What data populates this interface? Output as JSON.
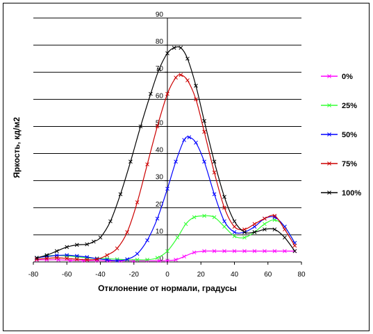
{
  "chart_data": {
    "type": "line",
    "title": "",
    "xlabel": "Отклонение от нормали, градусы",
    "ylabel": "Яркость, кд/м2",
    "xlim": [
      -80,
      80
    ],
    "ylim": [
      0,
      90
    ],
    "x_ticks": [
      "-80",
      "-60",
      "-40",
      "-20",
      "0",
      "20",
      "40",
      "60",
      "80"
    ],
    "y_ticks": [
      "0",
      "10",
      "20",
      "30",
      "40",
      "50",
      "60",
      "70",
      "80",
      "90"
    ],
    "grid": "horizontal",
    "legend_position": "right",
    "series": [
      {
        "name": "0%",
        "color": "#ff00ff",
        "points": [
          [
            -78,
            0.8
          ],
          [
            -72,
            0.8
          ],
          [
            -65,
            0.8
          ],
          [
            -58,
            0.6
          ],
          [
            -50,
            0.5
          ],
          [
            -42,
            0.5
          ],
          [
            -35,
            0.4
          ],
          [
            -28,
            0.4
          ],
          [
            -20,
            0.4
          ],
          [
            -12,
            0.4
          ],
          [
            -5,
            0.4
          ],
          [
            0,
            0.5
          ],
          [
            5,
            0.8
          ],
          [
            10,
            2
          ],
          [
            16,
            3.5
          ],
          [
            22,
            4
          ],
          [
            28,
            4
          ],
          [
            34,
            4
          ],
          [
            40,
            4
          ],
          [
            46,
            4
          ],
          [
            52,
            4
          ],
          [
            58,
            4
          ],
          [
            64,
            4
          ],
          [
            70,
            4
          ],
          [
            76,
            4
          ]
        ]
      },
      {
        "name": "25%",
        "color": "#33ff33",
        "points": [
          [
            -78,
            1.5
          ],
          [
            -72,
            2.2
          ],
          [
            -66,
            2.4
          ],
          [
            -60,
            2.2
          ],
          [
            -54,
            1.9
          ],
          [
            -48,
            1.5
          ],
          [
            -42,
            1.3
          ],
          [
            -36,
            1.2
          ],
          [
            -30,
            1
          ],
          [
            -24,
            0.8
          ],
          [
            -18,
            0.8
          ],
          [
            -12,
            0.8
          ],
          [
            -6,
            1.5
          ],
          [
            0,
            4
          ],
          [
            6,
            9
          ],
          [
            11,
            14
          ],
          [
            16,
            16.5
          ],
          [
            22,
            17
          ],
          [
            28,
            16.5
          ],
          [
            34,
            13
          ],
          [
            40,
            9.5
          ],
          [
            46,
            9
          ],
          [
            52,
            11
          ],
          [
            58,
            14
          ],
          [
            64,
            15.5
          ],
          [
            70,
            13
          ],
          [
            76,
            7
          ]
        ]
      },
      {
        "name": "50%",
        "color": "#0000ff",
        "points": [
          [
            -78,
            1.5
          ],
          [
            -72,
            2
          ],
          [
            -66,
            2.4
          ],
          [
            -60,
            2.5
          ],
          [
            -54,
            2.2
          ],
          [
            -48,
            1.8
          ],
          [
            -42,
            1.2
          ],
          [
            -36,
            0.8
          ],
          [
            -30,
            0.5
          ],
          [
            -24,
            1
          ],
          [
            -18,
            3
          ],
          [
            -12,
            8
          ],
          [
            -6,
            16
          ],
          [
            0,
            27
          ],
          [
            5,
            37
          ],
          [
            10,
            45
          ],
          [
            13,
            46
          ],
          [
            17,
            44
          ],
          [
            22,
            37
          ],
          [
            28,
            25
          ],
          [
            34,
            15
          ],
          [
            40,
            11
          ],
          [
            46,
            11
          ],
          [
            52,
            13
          ],
          [
            58,
            16
          ],
          [
            64,
            16.5
          ],
          [
            70,
            13
          ],
          [
            76,
            7
          ]
        ]
      },
      {
        "name": "75%",
        "color": "#cc0000",
        "points": [
          [
            -78,
            1
          ],
          [
            -72,
            1.3
          ],
          [
            -66,
            1.5
          ],
          [
            -60,
            1.3
          ],
          [
            -54,
            1
          ],
          [
            -48,
            0.8
          ],
          [
            -42,
            1
          ],
          [
            -36,
            2.5
          ],
          [
            -30,
            5
          ],
          [
            -24,
            11
          ],
          [
            -18,
            22
          ],
          [
            -12,
            36
          ],
          [
            -6,
            50
          ],
          [
            0,
            62
          ],
          [
            5,
            68
          ],
          [
            8,
            69
          ],
          [
            12,
            67
          ],
          [
            17,
            60
          ],
          [
            22,
            48
          ],
          [
            28,
            33
          ],
          [
            34,
            20
          ],
          [
            40,
            13
          ],
          [
            46,
            12
          ],
          [
            52,
            14
          ],
          [
            58,
            16
          ],
          [
            64,
            17
          ],
          [
            70,
            12
          ],
          [
            76,
            6
          ]
        ]
      },
      {
        "name": "100%",
        "color": "#000000",
        "points": [
          [
            -78,
            1.5
          ],
          [
            -72,
            2.5
          ],
          [
            -66,
            4
          ],
          [
            -60,
            5.5
          ],
          [
            -54,
            6.3
          ],
          [
            -48,
            6.5
          ],
          [
            -44,
            7.5
          ],
          [
            -40,
            9
          ],
          [
            -34,
            15
          ],
          [
            -28,
            25
          ],
          [
            -22,
            37
          ],
          [
            -16,
            50
          ],
          [
            -10,
            62
          ],
          [
            -5,
            71
          ],
          [
            0,
            77
          ],
          [
            4,
            79
          ],
          [
            8,
            79
          ],
          [
            12,
            75
          ],
          [
            17,
            65
          ],
          [
            22,
            52
          ],
          [
            28,
            37
          ],
          [
            34,
            24
          ],
          [
            40,
            15
          ],
          [
            46,
            11
          ],
          [
            52,
            11
          ],
          [
            58,
            12
          ],
          [
            64,
            12
          ],
          [
            70,
            9
          ],
          [
            76,
            4
          ]
        ]
      }
    ]
  }
}
